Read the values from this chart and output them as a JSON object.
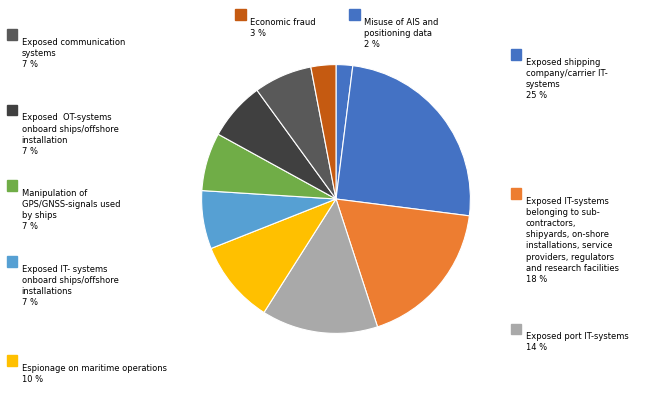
{
  "values": [
    2,
    25,
    18,
    14,
    10,
    7,
    7,
    7,
    7,
    3
  ],
  "colors": [
    "#4472C4",
    "#4472C4",
    "#ED7D31",
    "#A9A9A9",
    "#FFC000",
    "#56A0D3",
    "#70AD47",
    "#404040",
    "#595959",
    "#C55A11"
  ],
  "legend_left": [
    {
      "idx": 8,
      "color": "#595959",
      "text": "Exposed communication\nsystems\n7 %"
    },
    {
      "idx": 7,
      "color": "#404040",
      "text": "Exposed  OT-systems\nonboard ships/offshore\ninstallation\n7 %"
    },
    {
      "idx": 6,
      "color": "#70AD47",
      "text": "Manipulation of\nGPS/GNSS-signals used\nby ships\n7 %"
    },
    {
      "idx": 5,
      "color": "#56A0D3",
      "text": "Exposed IT- systems\nonboard ships/offshore\ninstallations\n7 %"
    },
    {
      "idx": 4,
      "color": "#FFC000",
      "text": "Espionage on maritime operations\n10 %"
    }
  ],
  "legend_top": [
    {
      "idx": 9,
      "color": "#C55A11",
      "text": "Economic fraud\n3 %"
    },
    {
      "idx": 0,
      "color": "#4472C4",
      "text": "Misuse of AIS and\npositioning data\n2 %"
    }
  ],
  "legend_right": [
    {
      "idx": 1,
      "color": "#4472C4",
      "text": "Exposed shipping\ncompany/carrier IT-\nsystems\n25 %"
    },
    {
      "idx": 2,
      "color": "#ED7D31",
      "text": "Exposed IT-systems\nbelonging to sub-\ncontractors,\nshipyards, on-shore\ninstallations, service\nproviders, regulators\nand research facilities\n18 %"
    },
    {
      "idx": 3,
      "color": "#A9A9A9",
      "text": "Exposed port IT-systems\n14 %"
    }
  ],
  "background_color": "#FFFFFF",
  "figsize": [
    6.72,
    3.98
  ],
  "dpi": 100
}
